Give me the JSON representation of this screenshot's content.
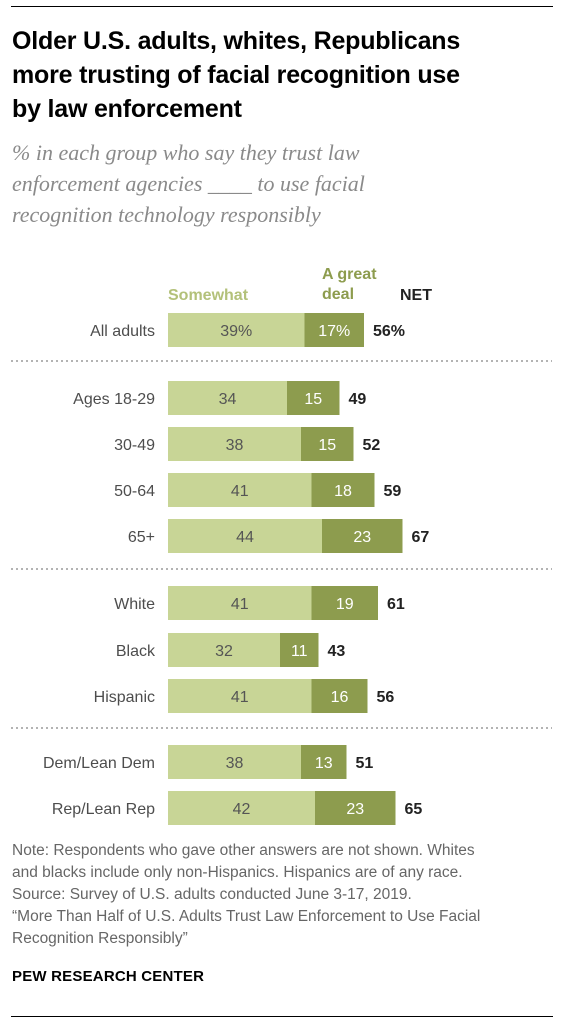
{
  "header": {
    "title_lines": [
      "Older U.S. adults, whites, Republicans",
      "more trusting of facial recognition use",
      "by law enforcement"
    ],
    "subtitle_lines": [
      "% in each group who say they trust law",
      "enforcement agencies ____ to use facial",
      "recognition technology responsibly"
    ]
  },
  "chart_data": {
    "type": "bar",
    "orientation": "horizontal",
    "stacked": true,
    "legend": {
      "somewhat": "Somewhat",
      "great_deal": "A great deal",
      "net": "NET"
    },
    "colors": {
      "somewhat": "#c8d596",
      "great_deal": "#8d9c4e",
      "label": "#4d4d4d",
      "net": "#222222",
      "divider": "#9a9a9a"
    },
    "categories": [
      "All adults",
      "Ages 18-29",
      "30-49",
      "50-64",
      "65+",
      "White",
      "Black",
      "Hispanic",
      "Dem/Lean Dem",
      "Rep/Lean Rep"
    ],
    "groups": [
      [
        0
      ],
      [
        1,
        2,
        3,
        4
      ],
      [
        5,
        6,
        7
      ],
      [
        8,
        9
      ]
    ],
    "series": [
      {
        "name": "Somewhat",
        "values": [
          39,
          34,
          38,
          41,
          44,
          41,
          32,
          41,
          38,
          42
        ],
        "labels": [
          "39%",
          "34",
          "38",
          "41",
          "44",
          "41",
          "32",
          "41",
          "38",
          "42"
        ]
      },
      {
        "name": "A great deal",
        "values": [
          17,
          15,
          15,
          18,
          23,
          19,
          11,
          16,
          13,
          23
        ],
        "labels": [
          "17%",
          "15",
          "15",
          "18",
          "23",
          "19",
          "11",
          "16",
          "13",
          "23"
        ]
      }
    ],
    "net": [
      56,
      49,
      52,
      59,
      67,
      61,
      43,
      56,
      51,
      65
    ],
    "net_labels": [
      "56%",
      "49",
      "52",
      "59",
      "67",
      "61",
      "43",
      "56",
      "51",
      "65"
    ],
    "xlim": [
      0,
      100
    ]
  },
  "notes": {
    "lines": [
      "Note: Respondents who gave other answers are not shown. Whites",
      "and blacks include only non-Hispanics. Hispanics are of any race.",
      "Source: Survey of U.S. adults conducted June 3-17, 2019.",
      "“More Than Half of U.S. Adults Trust Law Enforcement to Use Facial",
      "Recognition Responsibly”"
    ]
  },
  "footer": {
    "brand": "PEW RESEARCH CENTER"
  }
}
